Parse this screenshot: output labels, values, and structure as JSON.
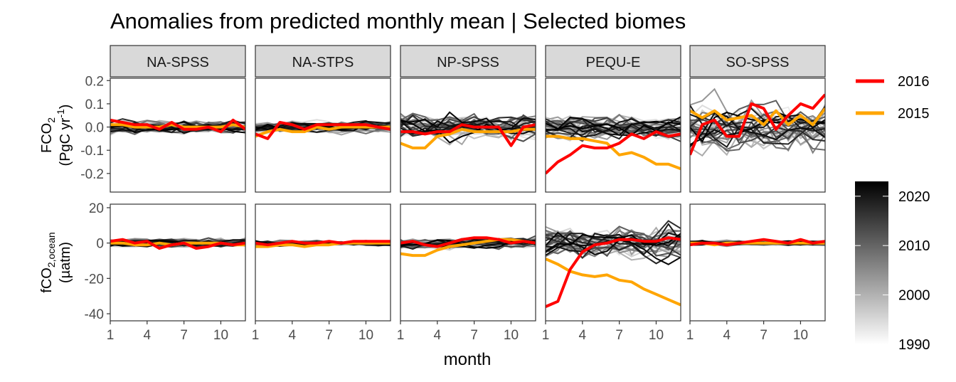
{
  "chart_data": {
    "type": "line",
    "title": "Anomalies from predicted monthly mean | Selected biomes",
    "xlabel": "month",
    "x": [
      1,
      2,
      3,
      4,
      5,
      6,
      7,
      8,
      9,
      10,
      11,
      12
    ],
    "x_ticks": [
      1,
      4,
      7,
      10
    ],
    "xlim": [
      1,
      12
    ],
    "facets": [
      "NA-SPSS",
      "NA-STPS",
      "NP-SPSS",
      "PEQU-E",
      "SO-SPSS"
    ],
    "rows": [
      {
        "ylabel_main": "FCO",
        "ylabel_sub": "2",
        "ylabel_unit_pre": "(PgC yr",
        "ylabel_unit_sup": "-1",
        "ylabel_unit_post": ")",
        "ylim": [
          -0.28,
          0.21
        ],
        "y_ticks": [
          0.2,
          0.1,
          0.0,
          -0.1,
          -0.2
        ],
        "y_tick_labels": [
          "0.2",
          "0.1",
          "0.0",
          "-0.1",
          "-0.2"
        ]
      },
      {
        "ylabel_main": "fCO",
        "ylabel_sub": "2,ocean",
        "ylabel_unit": "(µatm)",
        "ylim": [
          -44,
          22
        ],
        "y_ticks": [
          20,
          0,
          -20,
          -40
        ],
        "y_tick_labels": [
          "20",
          "0",
          "-20",
          "-40"
        ]
      }
    ],
    "highlight": [
      {
        "name": "2016",
        "color": "#ff0000"
      },
      {
        "name": "2015",
        "color": "#ffa500"
      }
    ],
    "highlight_values": {
      "2016": [
        [
          [
            0.03,
            0.02,
            0.01,
            0.01,
            -0.01,
            0.02,
            -0.01,
            -0.01,
            0.0,
            -0.02,
            0.03,
            -0.01
          ],
          [
            -0.03,
            -0.05,
            0.02,
            0.01,
            -0.01,
            0.01,
            0.01,
            0.01,
            0.01,
            0.01,
            0.0,
            -0.01
          ],
          [
            -0.02,
            -0.02,
            -0.03,
            -0.02,
            -0.02,
            0.01,
            0.0,
            0.0,
            0.0,
            -0.08,
            0.0,
            0.01
          ],
          [
            -0.2,
            -0.15,
            -0.12,
            -0.08,
            -0.09,
            -0.09,
            -0.07,
            -0.03,
            -0.05,
            -0.02,
            -0.04,
            -0.03
          ],
          [
            -0.12,
            0.01,
            0.03,
            -0.04,
            -0.04,
            0.1,
            0.08,
            -0.01,
            0.05,
            0.1,
            0.08,
            0.14
          ]
        ],
        [
          [
            1,
            2,
            0,
            1,
            -3,
            -1,
            0,
            -3,
            -2,
            0,
            -1,
            0
          ],
          [
            0,
            -1,
            0,
            1,
            0,
            0,
            1,
            0,
            1,
            1,
            1,
            1
          ],
          [
            0,
            1,
            -1,
            -2,
            0,
            2,
            3,
            3,
            2,
            0,
            1,
            0
          ],
          [
            -36,
            -33,
            -15,
            -5,
            -1,
            0,
            2,
            2,
            1,
            1,
            3,
            2
          ],
          [
            -1,
            0,
            0,
            -1,
            0,
            1,
            2,
            1,
            0,
            2,
            0,
            1
          ]
        ]
      ],
      "2015": [
        [
          [
            0.01,
            0.01,
            0.0,
            0.0,
            0.0,
            0.01,
            0.0,
            0.0,
            0.0,
            0.0,
            0.01,
            0.0
          ],
          [
            -0.04,
            -0.02,
            -0.01,
            -0.02,
            -0.02,
            0.0,
            -0.01,
            0.0,
            0.0,
            0.0,
            0.0,
            0.0
          ],
          [
            -0.07,
            -0.09,
            -0.09,
            -0.04,
            -0.03,
            -0.01,
            -0.02,
            -0.02,
            -0.02,
            -0.02,
            -0.01,
            -0.01
          ],
          [
            -0.04,
            -0.04,
            -0.05,
            -0.05,
            -0.06,
            -0.07,
            -0.12,
            -0.11,
            -0.13,
            -0.16,
            -0.16,
            -0.18
          ],
          [
            0.07,
            0.04,
            0.07,
            0.03,
            0.04,
            0.05,
            0.01,
            0.07,
            0.01,
            0.05,
            0.01,
            0.08
          ]
        ],
        [
          [
            0,
            0,
            -1,
            -1,
            0,
            -1,
            0,
            0,
            0,
            0,
            -1,
            -1
          ],
          [
            -2,
            -2,
            -1,
            -1,
            -2,
            -1,
            -1,
            0,
            0,
            0,
            0,
            0
          ],
          [
            -6,
            -7,
            -7,
            -4,
            -2,
            -1,
            0,
            1,
            2,
            2,
            1,
            0
          ],
          [
            -9,
            -12,
            -16,
            -18,
            -19,
            -18,
            -21,
            -22,
            -26,
            -29,
            -32,
            -35
          ],
          [
            0,
            0,
            -1,
            0,
            0,
            0,
            0,
            0,
            0,
            0,
            0,
            0
          ]
        ]
      ]
    },
    "colorbar": {
      "type": "gradient",
      "min": 1990,
      "max": 2023,
      "low_color": "#ffffff",
      "high_color": "#000000",
      "ticks": [
        2020,
        2010,
        2000,
        1990
      ],
      "tick_labels": [
        "2020",
        "2010",
        "2000",
        "1990"
      ]
    }
  }
}
